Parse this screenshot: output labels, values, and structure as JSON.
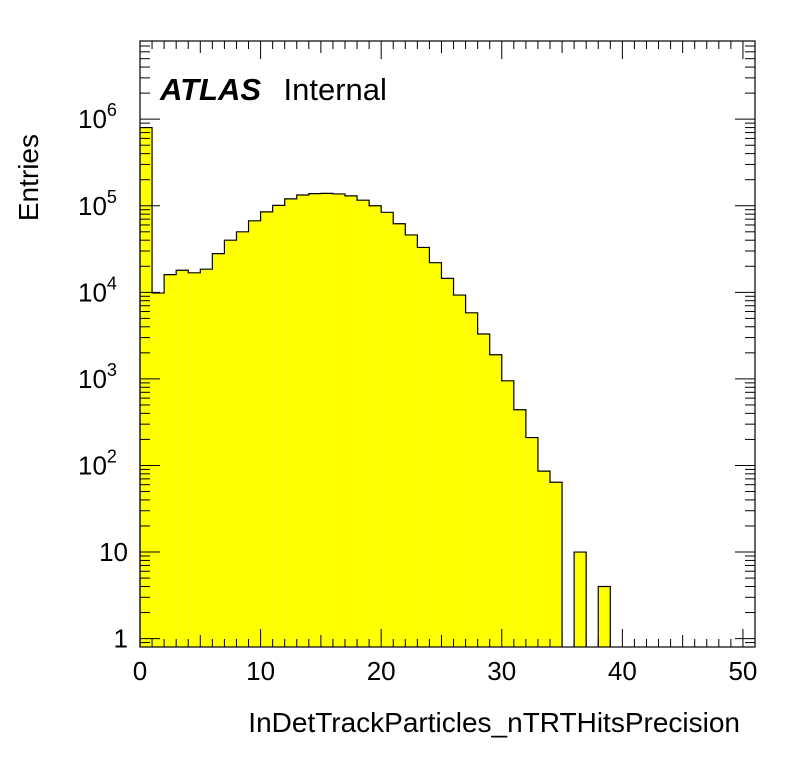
{
  "chart_data": {
    "type": "bar",
    "title": "",
    "xlabel": "InDetTrackParticles_nTRTHitsPrecision",
    "ylabel": "Entries",
    "xlim": [
      0,
      51
    ],
    "ylim": [
      0.8,
      8000000
    ],
    "yscale": "log",
    "bin_width": 1,
    "bin_edges_start": [
      0,
      1,
      2,
      3,
      4,
      5,
      6,
      7,
      8,
      9,
      10,
      11,
      12,
      13,
      14,
      15,
      16,
      17,
      18,
      19,
      20,
      21,
      22,
      23,
      24,
      25,
      26,
      27,
      28,
      29,
      30,
      31,
      32,
      33,
      34,
      35,
      36,
      37,
      38,
      39,
      40,
      41,
      42,
      43,
      44,
      45,
      46,
      47,
      48,
      49,
      50
    ],
    "values": [
      800000,
      9800,
      16000,
      18000,
      16800,
      18500,
      28000,
      40000,
      50000,
      67000,
      85000,
      101000,
      120000,
      133000,
      138000,
      139000,
      137000,
      130000,
      116000,
      100000,
      84000,
      62000,
      46000,
      33000,
      22000,
      14500,
      9300,
      5800,
      3300,
      1900,
      950,
      440,
      210,
      86,
      64,
      0,
      10,
      0,
      4,
      0,
      0,
      0,
      0,
      0,
      0,
      0,
      0,
      0,
      0,
      0,
      0
    ],
    "x_ticks": [
      0,
      10,
      20,
      30,
      40,
      50
    ],
    "x_tick_labels": [
      "0",
      "10",
      "20",
      "30",
      "40",
      "50"
    ],
    "y_ticks": [
      {
        "value": 1,
        "base": "1",
        "exp": ""
      },
      {
        "value": 10,
        "base": "10",
        "exp": ""
      },
      {
        "value": 100,
        "base": "10",
        "exp": "2"
      },
      {
        "value": 1000,
        "base": "10",
        "exp": "3"
      },
      {
        "value": 10000,
        "base": "10",
        "exp": "4"
      },
      {
        "value": 100000,
        "base": "10",
        "exp": "5"
      },
      {
        "value": 1000000,
        "base": "10",
        "exp": "6"
      }
    ],
    "grid": false,
    "fill_color": "#ffff00",
    "line_color": "#000000",
    "annotation": {
      "bold": "ATLAS",
      "text": "Internal"
    }
  }
}
